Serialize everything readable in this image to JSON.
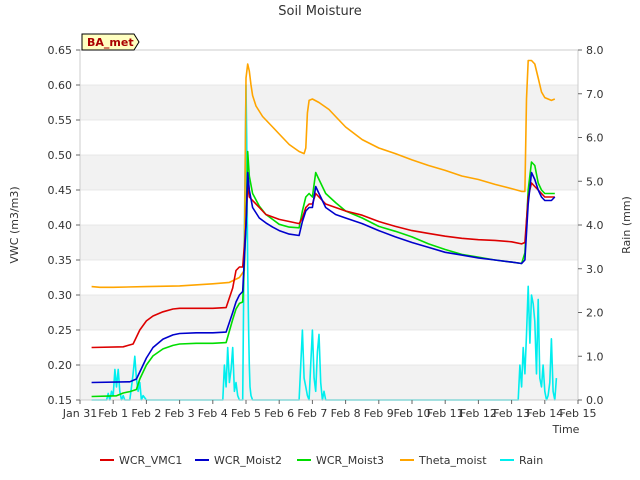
{
  "chart_data": {
    "type": "line",
    "title": "Soil Moisture",
    "site_label": "BA_met",
    "xlabel": "Time",
    "ylabel_left": "VWC (m3/m3)",
    "ylabel_right": "Rain (mm)",
    "xlim": [
      0,
      15
    ],
    "ylim_left": [
      0.15,
      0.65
    ],
    "ylim_right": [
      0,
      8
    ],
    "x_ticks": [
      {
        "x": 0,
        "label": "Jan 31"
      },
      {
        "x": 1,
        "label": "Feb 1"
      },
      {
        "x": 2,
        "label": "Feb 2"
      },
      {
        "x": 3,
        "label": "Feb 3"
      },
      {
        "x": 4,
        "label": "Feb 4"
      },
      {
        "x": 5,
        "label": "Feb 5"
      },
      {
        "x": 6,
        "label": "Feb 6"
      },
      {
        "x": 7,
        "label": "Feb 7"
      },
      {
        "x": 8,
        "label": "Feb 8"
      },
      {
        "x": 9,
        "label": "Feb 9"
      },
      {
        "x": 10,
        "label": "Feb 10"
      },
      {
        "x": 11,
        "label": "Feb 11"
      },
      {
        "x": 12,
        "label": "Feb 12"
      },
      {
        "x": 13,
        "label": "Feb 13"
      },
      {
        "x": 14,
        "label": "Feb 14"
      },
      {
        "x": 15,
        "label": "Feb 15"
      }
    ],
    "y_ticks_left": [
      {
        "v": 0.15,
        "label": "0.15"
      },
      {
        "v": 0.2,
        "label": "0.20"
      },
      {
        "v": 0.25,
        "label": "0.25"
      },
      {
        "v": 0.3,
        "label": "0.30"
      },
      {
        "v": 0.35,
        "label": "0.35"
      },
      {
        "v": 0.4,
        "label": "0.40"
      },
      {
        "v": 0.45,
        "label": "0.45"
      },
      {
        "v": 0.5,
        "label": "0.50"
      },
      {
        "v": 0.55,
        "label": "0.55"
      },
      {
        "v": 0.6,
        "label": "0.60"
      },
      {
        "v": 0.65,
        "label": "0.65"
      }
    ],
    "y_ticks_right": [
      {
        "v": 0,
        "label": "0.0"
      },
      {
        "v": 1,
        "label": "1.0"
      },
      {
        "v": 2,
        "label": "2.0"
      },
      {
        "v": 3,
        "label": "3.0"
      },
      {
        "v": 4,
        "label": "4.0"
      },
      {
        "v": 5,
        "label": "5.0"
      },
      {
        "v": 6,
        "label": "6.0"
      },
      {
        "v": 7,
        "label": "7.0"
      },
      {
        "v": 8,
        "label": "8.0"
      }
    ],
    "shaded_bands": [
      [
        0.15,
        0.2
      ],
      [
        0.25,
        0.3
      ],
      [
        0.35,
        0.4
      ],
      [
        0.45,
        0.5
      ],
      [
        0.55,
        0.6
      ]
    ],
    "series": [
      {
        "name": "WCR_VMC1",
        "color": "#dd0000",
        "axis": "left",
        "x": [
          0.35,
          1.3,
          1.6,
          1.8,
          2.0,
          2.2,
          2.5,
          2.8,
          3.0,
          3.5,
          4.0,
          4.4,
          4.6,
          4.7,
          4.8,
          4.9,
          5.0,
          5.05,
          5.1,
          5.2,
          5.4,
          5.6,
          6.0,
          6.3,
          6.6,
          6.7,
          6.8,
          6.9,
          7.0,
          7.1,
          7.2,
          7.4,
          7.7,
          8.0,
          8.5,
          9.0,
          9.5,
          10.0,
          10.5,
          11.0,
          11.5,
          12.0,
          12.5,
          13.0,
          13.3,
          13.4,
          13.5,
          13.6,
          13.7,
          13.8,
          13.9,
          14.0,
          14.2,
          14.3
        ],
        "y": [
          0.225,
          0.226,
          0.23,
          0.25,
          0.263,
          0.27,
          0.276,
          0.28,
          0.281,
          0.281,
          0.281,
          0.282,
          0.31,
          0.335,
          0.34,
          0.34,
          0.4,
          0.46,
          0.44,
          0.435,
          0.425,
          0.415,
          0.408,
          0.405,
          0.402,
          0.41,
          0.425,
          0.43,
          0.43,
          0.445,
          0.44,
          0.43,
          0.425,
          0.42,
          0.414,
          0.405,
          0.398,
          0.392,
          0.388,
          0.384,
          0.381,
          0.379,
          0.378,
          0.376,
          0.373,
          0.375,
          0.44,
          0.46,
          0.455,
          0.45,
          0.445,
          0.44,
          0.44,
          0.44
        ]
      },
      {
        "name": "WCR_Moist2",
        "color": "#0000cc",
        "axis": "left",
        "x": [
          0.35,
          1.5,
          1.7,
          1.8,
          2.0,
          2.2,
          2.5,
          2.8,
          3.0,
          3.5,
          4.0,
          4.4,
          4.6,
          4.7,
          4.8,
          4.9,
          5.0,
          5.05,
          5.1,
          5.2,
          5.4,
          5.6,
          5.8,
          6.0,
          6.3,
          6.6,
          6.7,
          6.8,
          6.9,
          7.0,
          7.1,
          7.2,
          7.4,
          7.7,
          8.0,
          8.5,
          9.0,
          9.5,
          10.0,
          10.5,
          11.0,
          11.5,
          12.0,
          12.5,
          13.0,
          13.3,
          13.4,
          13.5,
          13.6,
          13.7,
          13.8,
          13.9,
          14.0,
          14.2,
          14.3
        ],
        "y": [
          0.175,
          0.176,
          0.18,
          0.19,
          0.21,
          0.225,
          0.237,
          0.243,
          0.245,
          0.246,
          0.246,
          0.247,
          0.275,
          0.29,
          0.3,
          0.305,
          0.4,
          0.475,
          0.45,
          0.425,
          0.41,
          0.403,
          0.397,
          0.392,
          0.387,
          0.385,
          0.405,
          0.42,
          0.425,
          0.425,
          0.455,
          0.445,
          0.425,
          0.415,
          0.41,
          0.402,
          0.392,
          0.383,
          0.375,
          0.368,
          0.361,
          0.357,
          0.353,
          0.35,
          0.347,
          0.345,
          0.35,
          0.43,
          0.475,
          0.465,
          0.45,
          0.44,
          0.435,
          0.435,
          0.44
        ]
      },
      {
        "name": "WCR_Moist3",
        "color": "#00dd00",
        "axis": "left",
        "x": [
          0.35,
          1.1,
          1.3,
          1.5,
          1.7,
          1.8,
          2.0,
          2.2,
          2.5,
          2.8,
          3.0,
          3.5,
          4.0,
          4.4,
          4.6,
          4.7,
          4.8,
          4.9,
          5.0,
          5.05,
          5.1,
          5.2,
          5.4,
          5.6,
          5.8,
          6.0,
          6.3,
          6.6,
          6.7,
          6.8,
          6.9,
          7.0,
          7.1,
          7.2,
          7.4,
          7.7,
          8.0,
          8.5,
          9.0,
          9.5,
          10.0,
          10.5,
          11.0,
          11.5,
          12.0,
          12.5,
          13.0,
          13.3,
          13.4,
          13.5,
          13.6,
          13.7,
          13.8,
          13.9,
          14.0,
          14.2,
          14.3
        ],
        "y": [
          0.155,
          0.156,
          0.16,
          0.162,
          0.165,
          0.18,
          0.2,
          0.213,
          0.223,
          0.228,
          0.23,
          0.231,
          0.231,
          0.232,
          0.265,
          0.28,
          0.288,
          0.29,
          0.4,
          0.505,
          0.47,
          0.445,
          0.427,
          0.415,
          0.408,
          0.401,
          0.397,
          0.396,
          0.42,
          0.44,
          0.445,
          0.44,
          0.475,
          0.465,
          0.445,
          0.432,
          0.42,
          0.41,
          0.398,
          0.391,
          0.383,
          0.373,
          0.365,
          0.358,
          0.354,
          0.35,
          0.347,
          0.345,
          0.36,
          0.45,
          0.49,
          0.485,
          0.46,
          0.45,
          0.445,
          0.445,
          0.445
        ]
      },
      {
        "name": "Theta_moist",
        "color": "#ffa500",
        "axis": "left",
        "x": [
          0.35,
          0.6,
          1.0,
          2.0,
          3.0,
          4.0,
          4.5,
          4.8,
          4.95,
          5.0,
          5.05,
          5.1,
          5.15,
          5.2,
          5.3,
          5.5,
          5.8,
          6.0,
          6.3,
          6.6,
          6.75,
          6.8,
          6.85,
          6.9,
          7.0,
          7.2,
          7.5,
          7.7,
          8.0,
          8.5,
          9.0,
          9.5,
          10.0,
          10.5,
          11.0,
          11.5,
          12.0,
          12.5,
          13.0,
          13.3,
          13.4,
          13.45,
          13.5,
          13.6,
          13.7,
          13.8,
          13.9,
          14.0,
          14.2,
          14.3
        ],
        "y": [
          0.312,
          0.311,
          0.311,
          0.312,
          0.313,
          0.316,
          0.318,
          0.325,
          0.335,
          0.61,
          0.63,
          0.62,
          0.6,
          0.585,
          0.57,
          0.555,
          0.54,
          0.53,
          0.515,
          0.505,
          0.502,
          0.51,
          0.56,
          0.578,
          0.58,
          0.575,
          0.565,
          0.555,
          0.54,
          0.522,
          0.51,
          0.502,
          0.493,
          0.485,
          0.478,
          0.47,
          0.465,
          0.458,
          0.452,
          0.448,
          0.448,
          0.58,
          0.635,
          0.635,
          0.63,
          0.61,
          0.59,
          0.582,
          0.578,
          0.58
        ]
      },
      {
        "name": "Rain",
        "color": "#00eeee",
        "axis": "right",
        "x": [
          0.35,
          0.8,
          0.85,
          0.9,
          0.95,
          1.0,
          1.05,
          1.1,
          1.15,
          1.2,
          1.25,
          1.3,
          1.35,
          1.5,
          1.55,
          1.6,
          1.65,
          1.7,
          1.75,
          1.8,
          1.85,
          1.9,
          2.0,
          4.3,
          4.35,
          4.4,
          4.45,
          4.5,
          4.55,
          4.6,
          4.65,
          4.7,
          4.75,
          4.8,
          4.85,
          4.9,
          4.93,
          4.96,
          5.0,
          5.02,
          5.05,
          5.08,
          5.1,
          5.12,
          5.15,
          5.2,
          6.6,
          6.7,
          6.75,
          6.8,
          6.85,
          6.9,
          6.95,
          7.0,
          7.05,
          7.1,
          7.15,
          7.2,
          7.25,
          7.3,
          7.35,
          7.4,
          7.5,
          13.2,
          13.25,
          13.3,
          13.35,
          13.4,
          13.45,
          13.5,
          13.55,
          13.6,
          13.65,
          13.7,
          13.75,
          13.8,
          13.85,
          13.9,
          13.95,
          14.0,
          14.05,
          14.1,
          14.15,
          14.2,
          14.25,
          14.3,
          14.35
        ],
        "y": [
          0,
          0,
          0.15,
          0,
          0.2,
          0.1,
          0.7,
          0.3,
          0.7,
          0.2,
          0,
          0.1,
          0,
          0,
          0.3,
          0.6,
          1.0,
          0.5,
          0.2,
          0.4,
          0,
          0.1,
          0,
          0,
          0.8,
          0.3,
          1.2,
          0.4,
          0.7,
          1.2,
          0.2,
          0.4,
          0.1,
          0,
          0,
          0,
          2.5,
          4.5,
          7.2,
          6.0,
          3.0,
          1.5,
          0.8,
          0.3,
          0.1,
          0,
          0,
          1.6,
          0.5,
          0.3,
          0.1,
          0,
          0.8,
          1.6,
          0.5,
          0.2,
          1.1,
          1.5,
          0.4,
          0,
          0.2,
          0,
          0,
          0,
          0.8,
          0.3,
          1.2,
          0.6,
          1.5,
          2.6,
          1.3,
          2.4,
          2.2,
          1.8,
          0.6,
          2.3,
          0.5,
          0.3,
          0.8,
          0.2,
          0,
          0.1,
          0.4,
          1.4,
          0.2,
          0,
          0.5
        ]
      }
    ]
  }
}
